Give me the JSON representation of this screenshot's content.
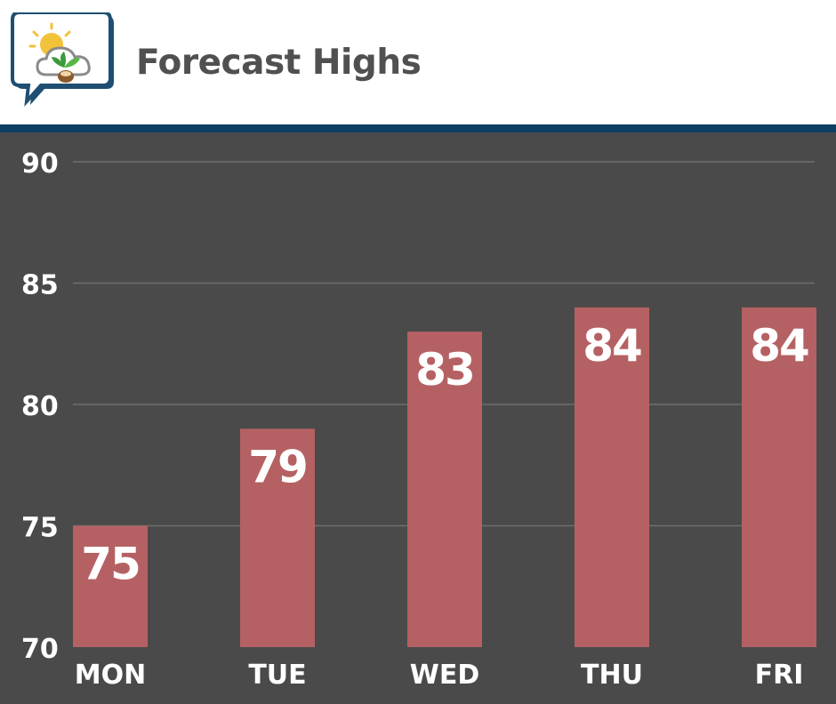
{
  "header": {
    "title": "Forecast Highs",
    "logo_icon": "weather-leaf-logo-icon"
  },
  "colors": {
    "header_bg": "#ffffff",
    "rule": "#0e3f63",
    "plot_bg": "#4a4a4a",
    "bar": "#b56163",
    "text": "#ffffff",
    "title_text": "#505050"
  },
  "chart_data": {
    "type": "bar",
    "title": "Forecast Highs",
    "xlabel": "",
    "ylabel": "",
    "categories": [
      "MON",
      "TUE",
      "WED",
      "THU",
      "FRI"
    ],
    "values": [
      75,
      79,
      83,
      84,
      84
    ],
    "data_labels": [
      "75",
      "79",
      "83",
      "84",
      "84"
    ],
    "ylim": [
      70,
      90
    ],
    "yticks": [
      70,
      75,
      80,
      85,
      90
    ],
    "ytick_labels": [
      "70",
      "75",
      "80",
      "85",
      "90"
    ],
    "grid": true,
    "legend": "none"
  }
}
